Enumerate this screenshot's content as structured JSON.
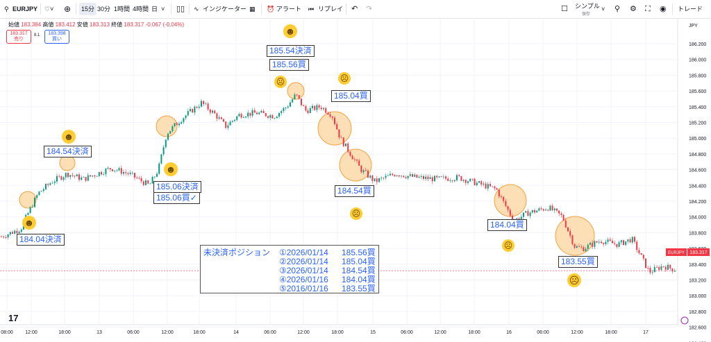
{
  "toolbar": {
    "symbol": "EURJPY",
    "timeframes": [
      "15分",
      "30分",
      "1時間",
      "4時間",
      "日"
    ],
    "active_timeframe": "15分",
    "indicators_label": "インジケーター",
    "alert_label": "アラート",
    "replay_label": "リプレイ",
    "layout_name": "シンプル",
    "layout_status": "保存",
    "trade_label": "トレード"
  },
  "legend": {
    "open_label": "始値",
    "open": "183.384",
    "high_label": "高値",
    "high": "183.412",
    "low_label": "安値",
    "low": "183.313",
    "close_label": "終値",
    "close": "183.317",
    "change": "-0.067 (-0.04%)"
  },
  "price_buttons": {
    "sell_price": "183.317",
    "sell_label": "売り",
    "spread": "8.1",
    "buy_price": "183.398",
    "buy_label": "買い"
  },
  "price_axis": {
    "currency": "JPY",
    "ticks": [
      "186.200",
      "186.000",
      "185.800",
      "185.600",
      "185.400",
      "185.200",
      "185.000",
      "184.800",
      "184.600",
      "184.400",
      "184.200",
      "184.000",
      "183.800",
      "183.600",
      "183.400",
      "183.200",
      "183.000",
      "182.800",
      "182.600",
      "182.400"
    ],
    "symbol_tag": "EURJPY",
    "last_price_tag": "183.317"
  },
  "time_axis": {
    "ticks": [
      "08:00",
      "12:00",
      "18:00",
      "13",
      "06:00",
      "12:00",
      "18:00",
      "14",
      "06:00",
      "12:00",
      "18:00",
      "15",
      "06:00",
      "12:00",
      "18:00",
      "16",
      "06:00",
      "12:00",
      "18:00",
      "17"
    ]
  },
  "annotations": {
    "a1": "184.04決済",
    "a2": "184.54決済",
    "a3": "185.06決済",
    "a4": "185.06買✓",
    "a5": "185.54決済",
    "a6": "185.56買",
    "a7": "185.04買",
    "a8": "184.54買",
    "a9": "184.04買",
    "a10": "183.55買"
  },
  "positions": {
    "title": "未決済ポジション",
    "rows": [
      {
        "date": "①2026/01/14",
        "price": "185.56買"
      },
      {
        "date": "②2026/01/14",
        "price": "185.04買"
      },
      {
        "date": "③2026/01/14",
        "price": "184.54買"
      },
      {
        "date": "④2026/01/16",
        "price": "184.04買"
      },
      {
        "date": "⑤2016/01/16",
        "price": "183.55買"
      }
    ]
  },
  "colors": {
    "up": "#089981",
    "down": "#f23645",
    "annotation": "#2962ff",
    "circle_fill": "#fcd9a8",
    "circle_stroke": "#f5a23d"
  },
  "chart_data": {
    "type": "candlestick",
    "symbol": "EURJPY",
    "interval": "15分",
    "ylim": [
      182.3,
      186.3
    ],
    "path_points": [
      {
        "x": 2,
        "y": 183.75
      },
      {
        "x": 30,
        "y": 183.85
      },
      {
        "x": 40,
        "y": 184.04
      },
      {
        "x": 55,
        "y": 184.3
      },
      {
        "x": 75,
        "y": 184.45
      },
      {
        "x": 97,
        "y": 184.55
      },
      {
        "x": 120,
        "y": 184.48
      },
      {
        "x": 140,
        "y": 184.55
      },
      {
        "x": 160,
        "y": 184.62
      },
      {
        "x": 185,
        "y": 184.55
      },
      {
        "x": 215,
        "y": 184.4
      },
      {
        "x": 228,
        "y": 184.6
      },
      {
        "x": 240,
        "y": 185.06
      },
      {
        "x": 262,
        "y": 185.25
      },
      {
        "x": 290,
        "y": 185.45
      },
      {
        "x": 310,
        "y": 185.3
      },
      {
        "x": 325,
        "y": 185.15
      },
      {
        "x": 345,
        "y": 185.3
      },
      {
        "x": 370,
        "y": 185.32
      },
      {
        "x": 395,
        "y": 185.28
      },
      {
        "x": 413,
        "y": 185.4
      },
      {
        "x": 426,
        "y": 185.55
      },
      {
        "x": 440,
        "y": 185.35
      },
      {
        "x": 462,
        "y": 185.4
      },
      {
        "x": 478,
        "y": 185.3
      },
      {
        "x": 490,
        "y": 185.0
      },
      {
        "x": 505,
        "y": 184.8
      },
      {
        "x": 520,
        "y": 184.6
      },
      {
        "x": 540,
        "y": 184.45
      },
      {
        "x": 570,
        "y": 184.55
      },
      {
        "x": 600,
        "y": 184.5
      },
      {
        "x": 630,
        "y": 184.48
      },
      {
        "x": 660,
        "y": 184.5
      },
      {
        "x": 690,
        "y": 184.42
      },
      {
        "x": 715,
        "y": 184.35
      },
      {
        "x": 740,
        "y": 183.95
      },
      {
        "x": 760,
        "y": 184.05
      },
      {
        "x": 790,
        "y": 184.12
      },
      {
        "x": 810,
        "y": 184.0
      },
      {
        "x": 828,
        "y": 183.62
      },
      {
        "x": 840,
        "y": 183.6
      },
      {
        "x": 865,
        "y": 183.7
      },
      {
        "x": 890,
        "y": 183.65
      },
      {
        "x": 910,
        "y": 183.72
      },
      {
        "x": 935,
        "y": 183.3
      },
      {
        "x": 955,
        "y": 183.38
      },
      {
        "x": 975,
        "y": 183.32
      }
    ],
    "last_price": 183.317
  }
}
